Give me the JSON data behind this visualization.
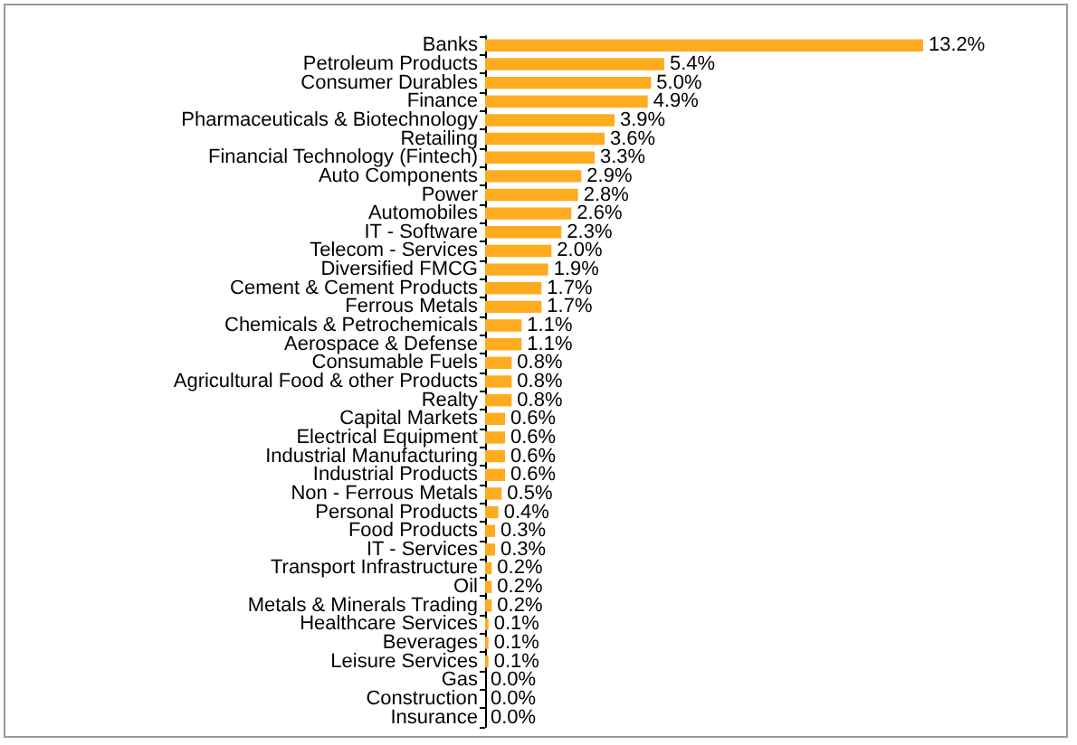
{
  "chart_data": {
    "type": "bar",
    "orientation": "horizontal",
    "categories": [
      "Banks",
      "Petroleum Products",
      "Consumer Durables",
      "Finance",
      "Pharmaceuticals & Biotechnology",
      "Retailing",
      "Financial Technology (Fintech)",
      "Auto Components",
      "Power",
      "Automobiles",
      "IT - Software",
      "Telecom - Services",
      "Diversified FMCG",
      "Cement & Cement Products",
      "Ferrous Metals",
      "Chemicals & Petrochemicals",
      "Aerospace & Defense",
      "Consumable Fuels",
      "Agricultural Food & other Products",
      "Realty",
      "Capital Markets",
      "Electrical Equipment",
      "Industrial Manufacturing",
      "Industrial Products",
      "Non - Ferrous Metals",
      "Personal Products",
      "Food Products",
      "IT - Services",
      "Transport Infrastructure",
      "Oil",
      "Metals & Minerals Trading",
      "Healthcare Services",
      "Beverages",
      "Leisure Services",
      "Gas",
      "Construction",
      "Insurance"
    ],
    "values": [
      13.2,
      5.4,
      5.0,
      4.9,
      3.9,
      3.6,
      3.3,
      2.9,
      2.8,
      2.6,
      2.3,
      2.0,
      1.9,
      1.7,
      1.7,
      1.1,
      1.1,
      0.8,
      0.8,
      0.8,
      0.6,
      0.6,
      0.6,
      0.6,
      0.5,
      0.4,
      0.3,
      0.3,
      0.2,
      0.2,
      0.2,
      0.1,
      0.1,
      0.1,
      0.0,
      0.0,
      0.0
    ],
    "value_labels": [
      "13.2%",
      "5.4%",
      "5.0%",
      "4.9%",
      "3.9%",
      "3.6%",
      "3.3%",
      "2.9%",
      "2.8%",
      "2.6%",
      "2.3%",
      "2.0%",
      "1.9%",
      "1.7%",
      "1.7%",
      "1.1%",
      "1.1%",
      "0.8%",
      "0.8%",
      "0.8%",
      "0.6%",
      "0.6%",
      "0.6%",
      "0.6%",
      "0.5%",
      "0.4%",
      "0.3%",
      "0.3%",
      "0.2%",
      "0.2%",
      "0.2%",
      "0.1%",
      "0.1%",
      "0.1%",
      "0.0%",
      "0.0%",
      "0.0%"
    ],
    "color": "#ffab1f",
    "grid": false
  }
}
